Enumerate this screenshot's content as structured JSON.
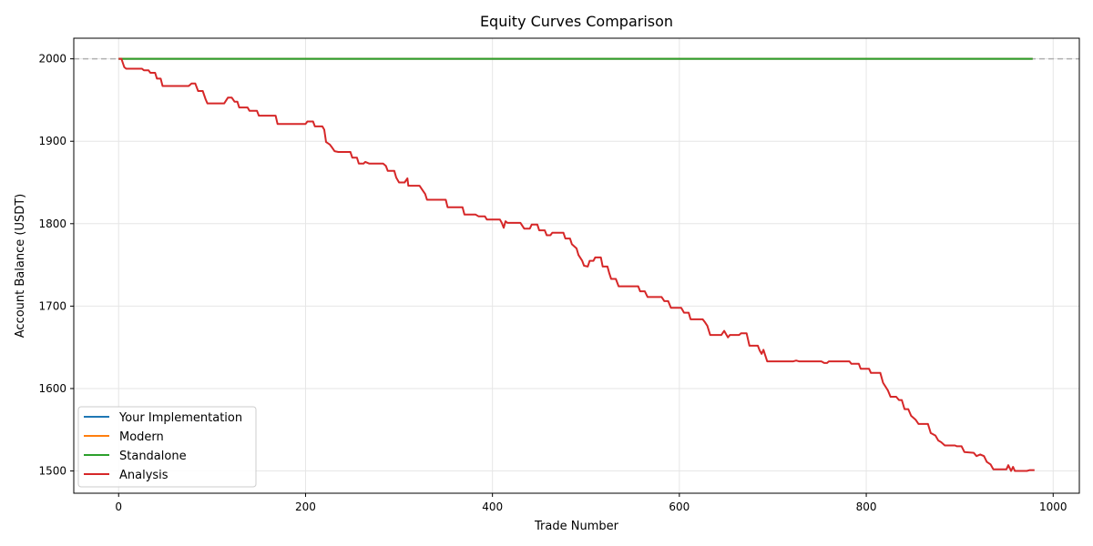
{
  "chart_data": {
    "type": "line",
    "title": "Equity Curves Comparison",
    "xlabel": "Trade Number",
    "ylabel": "Account Balance (USDT)",
    "xlim": [
      -48,
      1028
    ],
    "ylim": [
      1473,
      2025
    ],
    "xticks": [
      0,
      200,
      400,
      600,
      800,
      1000
    ],
    "yticks": [
      1500,
      1600,
      1700,
      1800,
      1900,
      2000
    ],
    "grid": true,
    "legend_position": "lower-left",
    "reference_line": {
      "y": 2000,
      "style": "dashed",
      "color": "#b0b0b0"
    },
    "series": [
      {
        "name": "Your Implementation",
        "color": "#1f77b4",
        "points": [
          [
            0,
            2000
          ],
          [
            978,
            2000
          ]
        ]
      },
      {
        "name": "Modern",
        "color": "#ff7f0e",
        "points": [
          [
            0,
            2000
          ],
          [
            978,
            2000
          ]
        ]
      },
      {
        "name": "Standalone",
        "color": "#2ca02c",
        "points": [
          [
            0,
            2000
          ],
          [
            978,
            2000
          ]
        ]
      },
      {
        "name": "Analysis",
        "color": "#d62728",
        "points": [
          [
            0,
            2000
          ],
          [
            3,
            2000
          ],
          [
            6,
            1990
          ],
          [
            8,
            1988
          ],
          [
            25,
            1988
          ],
          [
            27,
            1986
          ],
          [
            32,
            1986
          ],
          [
            34,
            1983
          ],
          [
            39,
            1983
          ],
          [
            41,
            1976
          ],
          [
            45,
            1976
          ],
          [
            47,
            1967
          ],
          [
            75,
            1967
          ],
          [
            78,
            1970
          ],
          [
            82,
            1970
          ],
          [
            85,
            1961
          ],
          [
            90,
            1961
          ],
          [
            93,
            1951
          ],
          [
            95,
            1946
          ],
          [
            113,
            1946
          ],
          [
            117,
            1953
          ],
          [
            121,
            1953
          ],
          [
            124,
            1948
          ],
          [
            127,
            1948
          ],
          [
            129,
            1941
          ],
          [
            138,
            1941
          ],
          [
            140,
            1937
          ],
          [
            148,
            1937
          ],
          [
            150,
            1931
          ],
          [
            168,
            1931
          ],
          [
            170,
            1921
          ],
          [
            200,
            1921
          ],
          [
            202,
            1924
          ],
          [
            208,
            1924
          ],
          [
            210,
            1918
          ],
          [
            218,
            1918
          ],
          [
            220,
            1914
          ],
          [
            222,
            1899
          ],
          [
            226,
            1896
          ],
          [
            228,
            1893
          ],
          [
            231,
            1888
          ],
          [
            235,
            1887
          ],
          [
            248,
            1887
          ],
          [
            250,
            1880
          ],
          [
            255,
            1880
          ],
          [
            257,
            1873
          ],
          [
            262,
            1873
          ],
          [
            264,
            1875
          ],
          [
            268,
            1873
          ],
          [
            283,
            1873
          ],
          [
            286,
            1870
          ],
          [
            288,
            1864
          ],
          [
            295,
            1864
          ],
          [
            297,
            1856
          ],
          [
            300,
            1850
          ],
          [
            306,
            1850
          ],
          [
            309,
            1855
          ],
          [
            310,
            1846
          ],
          [
            322,
            1846
          ],
          [
            325,
            1841
          ],
          [
            328,
            1836
          ],
          [
            330,
            1829
          ],
          [
            350,
            1829
          ],
          [
            352,
            1820
          ],
          [
            368,
            1820
          ],
          [
            370,
            1811
          ],
          [
            382,
            1811
          ],
          [
            385,
            1809
          ],
          [
            392,
            1809
          ],
          [
            394,
            1805
          ],
          [
            408,
            1805
          ],
          [
            410,
            1801
          ],
          [
            412,
            1795
          ],
          [
            414,
            1803
          ],
          [
            416,
            1801
          ],
          [
            430,
            1801
          ],
          [
            434,
            1794
          ],
          [
            440,
            1794
          ],
          [
            442,
            1799
          ],
          [
            448,
            1799
          ],
          [
            450,
            1792
          ],
          [
            456,
            1792
          ],
          [
            458,
            1786
          ],
          [
            462,
            1786
          ],
          [
            464,
            1789
          ],
          [
            476,
            1789
          ],
          [
            478,
            1782
          ],
          [
            483,
            1782
          ],
          [
            485,
            1775
          ],
          [
            490,
            1770
          ],
          [
            492,
            1762
          ],
          [
            496,
            1755
          ],
          [
            498,
            1749
          ],
          [
            502,
            1748
          ],
          [
            504,
            1755
          ],
          [
            508,
            1755
          ],
          [
            510,
            1759
          ],
          [
            516,
            1759
          ],
          [
            518,
            1748
          ],
          [
            523,
            1748
          ],
          [
            525,
            1740
          ],
          [
            527,
            1733
          ],
          [
            532,
            1733
          ],
          [
            535,
            1724
          ],
          [
            556,
            1724
          ],
          [
            558,
            1718
          ],
          [
            563,
            1718
          ],
          [
            566,
            1711
          ],
          [
            581,
            1711
          ],
          [
            584,
            1706
          ],
          [
            588,
            1706
          ],
          [
            591,
            1698
          ],
          [
            602,
            1698
          ],
          [
            605,
            1692
          ],
          [
            610,
            1692
          ],
          [
            612,
            1684
          ],
          [
            625,
            1684
          ],
          [
            627,
            1681
          ],
          [
            630,
            1676
          ],
          [
            633,
            1665
          ],
          [
            645,
            1665
          ],
          [
            648,
            1670
          ],
          [
            652,
            1662
          ],
          [
            654,
            1665
          ],
          [
            664,
            1665
          ],
          [
            666,
            1667
          ],
          [
            672,
            1667
          ],
          [
            675,
            1652
          ],
          [
            684,
            1652
          ],
          [
            686,
            1646
          ],
          [
            688,
            1642
          ],
          [
            690,
            1647
          ],
          [
            694,
            1633
          ],
          [
            722,
            1633
          ],
          [
            725,
            1634
          ],
          [
            728,
            1633
          ],
          [
            752,
            1633
          ],
          [
            755,
            1631
          ],
          [
            758,
            1631
          ],
          [
            760,
            1633
          ],
          [
            782,
            1633
          ],
          [
            784,
            1630
          ],
          [
            792,
            1630
          ],
          [
            794,
            1624
          ],
          [
            803,
            1624
          ],
          [
            805,
            1619
          ],
          [
            815,
            1619
          ],
          [
            818,
            1607
          ],
          [
            823,
            1598
          ],
          [
            826,
            1590
          ],
          [
            832,
            1590
          ],
          [
            835,
            1586
          ],
          [
            838,
            1586
          ],
          [
            841,
            1575
          ],
          [
            845,
            1575
          ],
          [
            848,
            1567
          ],
          [
            853,
            1562
          ],
          [
            856,
            1557
          ],
          [
            866,
            1557
          ],
          [
            869,
            1546
          ],
          [
            874,
            1543
          ],
          [
            877,
            1537
          ],
          [
            880,
            1535
          ],
          [
            884,
            1531
          ],
          [
            895,
            1531
          ],
          [
            897,
            1530
          ],
          [
            902,
            1530
          ],
          [
            905,
            1523
          ],
          [
            915,
            1522
          ],
          [
            918,
            1518
          ],
          [
            922,
            1520
          ],
          [
            926,
            1518
          ],
          [
            929,
            1511
          ],
          [
            933,
            1508
          ],
          [
            936,
            1502
          ],
          [
            950,
            1502
          ],
          [
            952,
            1507
          ],
          [
            955,
            1500
          ],
          [
            957,
            1505
          ],
          [
            959,
            1500
          ],
          [
            972,
            1500
          ],
          [
            975,
            1501
          ],
          [
            980,
            1501
          ]
        ]
      }
    ]
  }
}
